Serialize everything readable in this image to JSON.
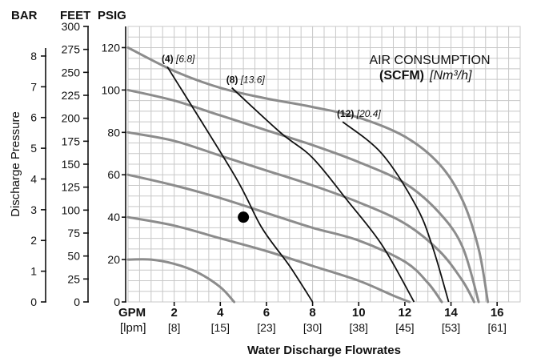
{
  "chart_data": {
    "type": "line",
    "title": "",
    "xlabel": "Water Discharge Flowrates",
    "ylabel": "Discharge Pressure",
    "x_unit_primary": "GPM",
    "x_unit_secondary": "[lpm]",
    "x_ticks": [
      2,
      4,
      6,
      8,
      10,
      12,
      14,
      16
    ],
    "x_ticks_lpm": [
      "[8]",
      "[15]",
      "[23]",
      "[30]",
      "[38]",
      "[45]",
      "[53]",
      "[61]"
    ],
    "xlim": [
      0,
      17
    ],
    "y_unit_psig": "PSIG",
    "y_unit_feet": "FEET",
    "y_unit_bar": "BAR",
    "y_ticks_psig": [
      0,
      20,
      40,
      60,
      80,
      100,
      120
    ],
    "y_ticks_feet": [
      0,
      25,
      50,
      75,
      100,
      125,
      150,
      175,
      200,
      225,
      250,
      275,
      300
    ],
    "y_ticks_bar": [
      0,
      1,
      2,
      3,
      4,
      5,
      6,
      7,
      8
    ],
    "ylim": [
      0,
      130
    ],
    "grid": true,
    "legend_title_1": "AIR CONSUMPTION",
    "legend_title_2_bold": "(SCFM)",
    "legend_title_2_italic": "[Nm³/h]",
    "pressure_curves": [
      {
        "points": [
          [
            0,
            120
          ],
          [
            2,
            109
          ],
          [
            4,
            101
          ],
          [
            6,
            96
          ],
          [
            8,
            92
          ],
          [
            10,
            87
          ],
          [
            12,
            78
          ],
          [
            13.5,
            65
          ],
          [
            14.5,
            48
          ],
          [
            15.2,
            25
          ],
          [
            15.6,
            0
          ]
        ]
      },
      {
        "points": [
          [
            0,
            100
          ],
          [
            2,
            95
          ],
          [
            4,
            88
          ],
          [
            6,
            81
          ],
          [
            8,
            74
          ],
          [
            10,
            66
          ],
          [
            12,
            56
          ],
          [
            13.5,
            42
          ],
          [
            14.5,
            26
          ],
          [
            15.2,
            0
          ]
        ]
      },
      {
        "points": [
          [
            0,
            80
          ],
          [
            2,
            76
          ],
          [
            4,
            69
          ],
          [
            6,
            62
          ],
          [
            8,
            55
          ],
          [
            10,
            47
          ],
          [
            12,
            37
          ],
          [
            13.5,
            24
          ],
          [
            14.5,
            10
          ],
          [
            15,
            0
          ]
        ]
      },
      {
        "points": [
          [
            0,
            60
          ],
          [
            2,
            55
          ],
          [
            4,
            49
          ],
          [
            6,
            42
          ],
          [
            8,
            35
          ],
          [
            10,
            29
          ],
          [
            12,
            19
          ],
          [
            13,
            9
          ],
          [
            13.6,
            0
          ]
        ]
      },
      {
        "points": [
          [
            0,
            40
          ],
          [
            2,
            36
          ],
          [
            4,
            30
          ],
          [
            6,
            24
          ],
          [
            8,
            17
          ],
          [
            10,
            10
          ],
          [
            11.5,
            3
          ],
          [
            12.2,
            0
          ]
        ]
      },
      {
        "points": [
          [
            0,
            20
          ],
          [
            1,
            20
          ],
          [
            2,
            18
          ],
          [
            3,
            14
          ],
          [
            4,
            7
          ],
          [
            4.6,
            0
          ]
        ]
      }
    ],
    "air_lines": [
      {
        "label": "(4)",
        "label_metric": "[6.8]",
        "points": [
          [
            1.7,
            111
          ],
          [
            4.6,
            60
          ],
          [
            5.8,
            35
          ],
          [
            7,
            17
          ],
          [
            8,
            0
          ]
        ]
      },
      {
        "label": "(8)",
        "label_metric": "[13.6]",
        "points": [
          [
            4.5,
            101
          ],
          [
            6.6,
            80
          ],
          [
            8,
            68
          ],
          [
            9.5,
            48
          ],
          [
            11,
            27
          ],
          [
            12.4,
            0
          ]
        ]
      },
      {
        "label": "(12)",
        "label_metric": "[20.4]",
        "points": [
          [
            9.3,
            85
          ],
          [
            11,
            70
          ],
          [
            12.5,
            45
          ],
          [
            13.2,
            26
          ],
          [
            13.9,
            0
          ]
        ]
      }
    ],
    "operating_point": {
      "x": 5,
      "y": 40
    }
  }
}
